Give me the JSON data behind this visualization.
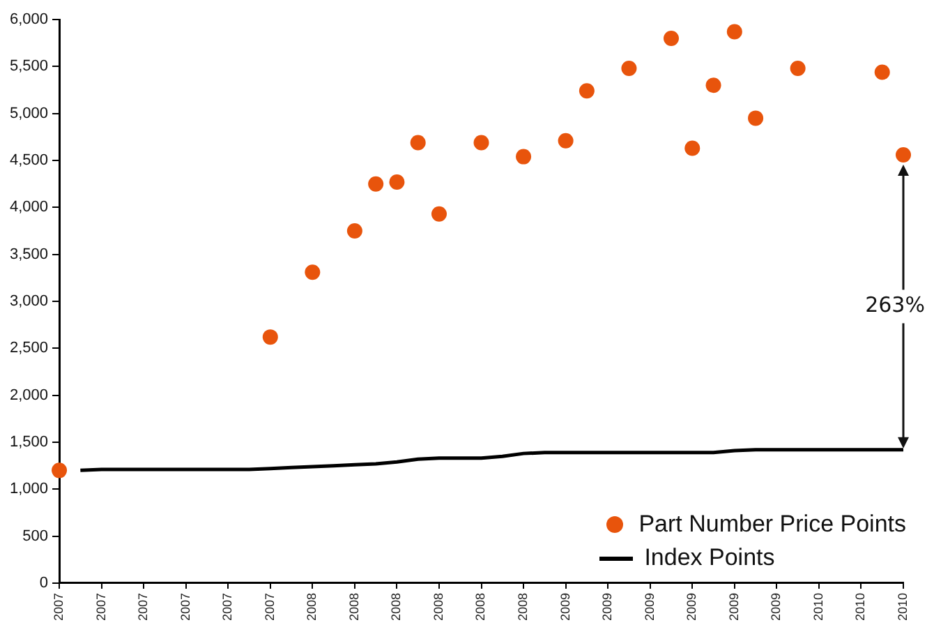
{
  "chart_data": {
    "type": "scatter",
    "categories": [
      "2007",
      null,
      "2007",
      null,
      "2007",
      null,
      "2007",
      null,
      "2007",
      null,
      "2007",
      null,
      "2008",
      null,
      "2008",
      null,
      "2008",
      null,
      "2008",
      null,
      "2008",
      null,
      "2008",
      null,
      "2009",
      null,
      "2009",
      null,
      "2009",
      null,
      "2009",
      null,
      "2009",
      null,
      "2009",
      null,
      "2010",
      null,
      "2010",
      null,
      "2010"
    ],
    "series": [
      {
        "name": "Part Number Price Points",
        "color": "#e8540c",
        "marker": "circle",
        "values": [
          1200,
          null,
          null,
          null,
          null,
          null,
          null,
          null,
          null,
          null,
          2620,
          null,
          3310,
          null,
          3750,
          4250,
          4270,
          4690,
          3930,
          null,
          4690,
          null,
          4540,
          null,
          4710,
          5240,
          null,
          5480,
          null,
          5800,
          4630,
          5300,
          5870,
          4950,
          null,
          5480,
          null,
          null,
          null,
          5440,
          4560
        ]
      },
      {
        "name": "Index Points",
        "type": "line",
        "color": "#000000",
        "marker": "none",
        "values": [
          null,
          1200,
          1210,
          1210,
          1210,
          1210,
          1210,
          1210,
          1210,
          1210,
          1220,
          1230,
          1240,
          1250,
          1260,
          1270,
          1290,
          1320,
          1330,
          1330,
          1330,
          1350,
          1380,
          1390,
          1390,
          1390,
          1390,
          1390,
          1390,
          1390,
          1390,
          1390,
          1410,
          1420,
          1420,
          1420,
          1420,
          1420,
          1420,
          1420,
          1420
        ]
      }
    ],
    "ylim": [
      0,
      6000
    ],
    "yticks": [
      0,
      500,
      {
        "value": 1000,
        "label": "1,000"
      },
      {
        "value": 1500,
        "label": "1,500"
      },
      {
        "value": 2000,
        "label": "2,000"
      },
      {
        "value": 2500,
        "label": "2,500"
      },
      {
        "value": 3000,
        "label": "3,000"
      },
      {
        "value": 3500,
        "label": "3,500"
      },
      {
        "value": 4000,
        "label": "4,000"
      },
      {
        "value": 4500,
        "label": "4,500"
      },
      {
        "value": 5000,
        "label": "5,000"
      },
      {
        "value": 5500,
        "label": "5,500"
      },
      {
        "value": 6000,
        "label": "6,000"
      }
    ],
    "legend": "bottom right",
    "annotations": [
      "263%"
    ]
  }
}
